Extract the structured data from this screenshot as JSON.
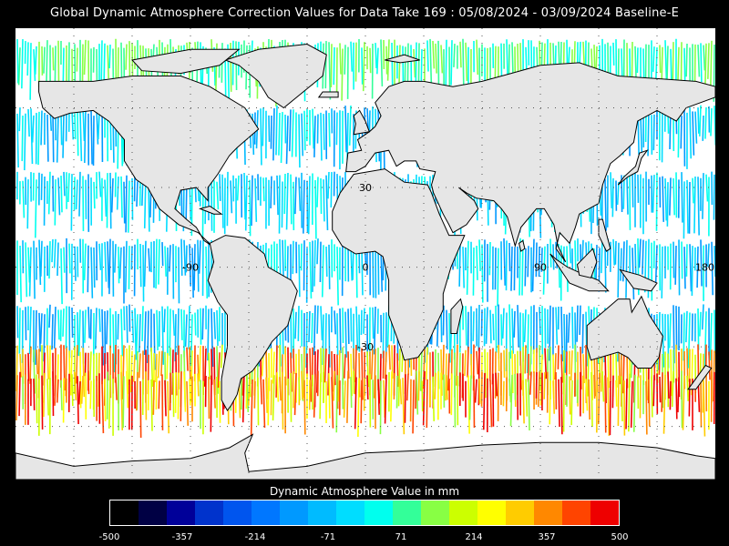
{
  "title": "Global Dynamic Atmosphere Correction Values for Data Take 169 : 05/08/2024 - 03/09/2024 Baseline-E",
  "map": {
    "projection": "equirectangular",
    "lon_range": [
      -180,
      180
    ],
    "lat_range": [
      -80,
      90
    ],
    "gridlines": true,
    "grid_labels": [
      {
        "axis": "lon",
        "value": -90,
        "text": "-90"
      },
      {
        "axis": "lon",
        "value": 0,
        "text": "0"
      },
      {
        "axis": "lon",
        "value": 90,
        "text": "90"
      },
      {
        "axis": "lon",
        "value": 180,
        "text": "180"
      },
      {
        "axis": "lat",
        "value": 30,
        "text": "30"
      },
      {
        "axis": "lat",
        "value": -30,
        "text": "-30"
      }
    ],
    "colors": {
      "land": "#e6e6e6",
      "no_data": "#ffffff",
      "coast": "#000000",
      "grid": "#555555"
    }
  },
  "colorbar": {
    "title": "Dynamic Atmosphere Value in mm",
    "min": -500,
    "max": 500,
    "tick_labels": [
      "-500",
      "-357",
      "-214",
      "-71",
      "71",
      "214",
      "357",
      "500"
    ],
    "colors": [
      "#000000",
      "#000044",
      "#000099",
      "#0033cc",
      "#0055ee",
      "#0077ff",
      "#0099ff",
      "#00bbff",
      "#00ddff",
      "#00ffee",
      "#33ff99",
      "#88ff44",
      "#ccff00",
      "#ffff00",
      "#ffcc00",
      "#ff8800",
      "#ff4400",
      "#ee0000"
    ]
  }
}
